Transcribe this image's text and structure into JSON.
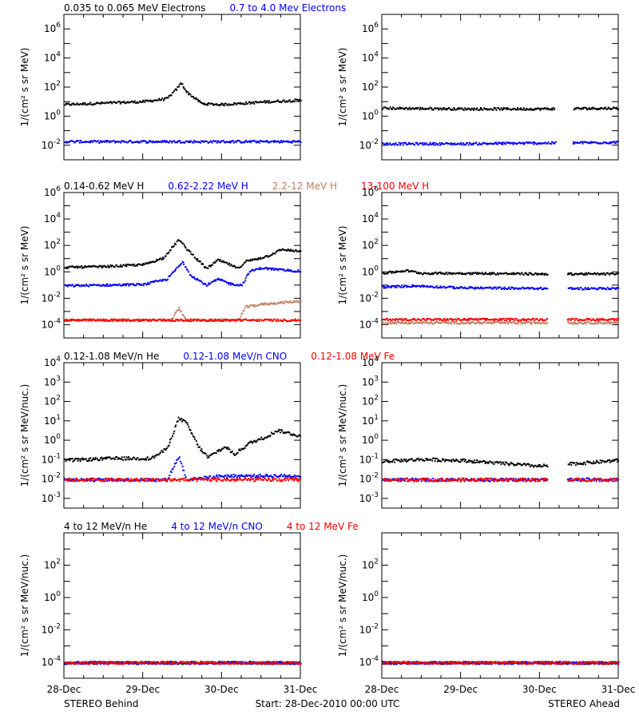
{
  "footer": {
    "left": "STEREO Behind",
    "center": "Start: 28-Dec-2010 00:00 UTC",
    "right": "STEREO Ahead"
  },
  "x_tick_labels": [
    "28-Dec",
    "29-Dec",
    "30-Dec",
    "31-Dec"
  ],
  "rows": [
    {
      "title_items": [
        {
          "text": "0.035 to 0.065 MeV Electrons",
          "color": "#000000"
        },
        {
          "text": "0.7 to 4.0 Mev Electrons",
          "color": "#0000ff"
        }
      ],
      "ylabel": "1/(cm² s sr MeV)",
      "y_ticks": [
        {
          "exp": -2,
          "label": "10",
          "sup": "-2"
        },
        {
          "exp": 0,
          "label": "10",
          "sup": "0"
        },
        {
          "exp": 2,
          "label": "10",
          "sup": "2"
        },
        {
          "exp": 4,
          "label": "10",
          "sup": "4"
        },
        {
          "exp": 6,
          "label": "10",
          "sup": "6"
        }
      ]
    },
    {
      "title_items": [
        {
          "text": "0.14-0.62 MeV H",
          "color": "#000000"
        },
        {
          "text": "0.62-2.22 MeV H",
          "color": "#0000ff"
        },
        {
          "text": "2.2-12 MeV H",
          "color": "#c08060"
        },
        {
          "text": "13-100 MeV H",
          "color": "#ff0000"
        }
      ],
      "ylabel": "1/(cm² s sr MeV)",
      "y_ticks": [
        {
          "exp": -4,
          "label": "10",
          "sup": "-4"
        },
        {
          "exp": -2,
          "label": "10",
          "sup": "-2"
        },
        {
          "exp": 0,
          "label": "10",
          "sup": "0"
        },
        {
          "exp": 2,
          "label": "10",
          "sup": "2"
        },
        {
          "exp": 4,
          "label": "10",
          "sup": "4"
        },
        {
          "exp": 6,
          "label": "10",
          "sup": "6"
        }
      ]
    },
    {
      "title_items": [
        {
          "text": "0.12-1.08 MeV/n He",
          "color": "#000000"
        },
        {
          "text": "0.12-1.08 MeV/n CNO",
          "color": "#0000ff"
        },
        {
          "text": "0.12-1.08 MeV Fe",
          "color": "#ff0000"
        }
      ],
      "ylabel": "1/(cm² s sr MeV/nuc.)",
      "y_ticks": [
        {
          "exp": -3,
          "label": "10",
          "sup": "-3"
        },
        {
          "exp": -2,
          "label": "10",
          "sup": "-2"
        },
        {
          "exp": -1,
          "label": "10",
          "sup": "-1"
        },
        {
          "exp": 0,
          "label": "10",
          "sup": "0"
        },
        {
          "exp": 1,
          "label": "10",
          "sup": "1"
        },
        {
          "exp": 2,
          "label": "10",
          "sup": "2"
        },
        {
          "exp": 3,
          "label": "10",
          "sup": "3"
        },
        {
          "exp": 4,
          "label": "10",
          "sup": "4"
        }
      ]
    },
    {
      "title_items": [
        {
          "text": "4 to 12 MeV/n He",
          "color": "#000000"
        },
        {
          "text": "4 to 12 MeV/n CNO",
          "color": "#0000ff"
        },
        {
          "text": "4 to 12 MeV Fe",
          "color": "#ff0000"
        }
      ],
      "ylabel": "1/(cm² s sr MeV/nuc.)",
      "y_ticks": [
        {
          "exp": -4,
          "label": "10",
          "sup": "-4"
        },
        {
          "exp": -2,
          "label": "10",
          "sup": "-2"
        },
        {
          "exp": 0,
          "label": "10",
          "sup": "0"
        },
        {
          "exp": 2,
          "label": "10",
          "sup": "2"
        }
      ]
    }
  ],
  "chart_data": [
    {
      "type": "scatter",
      "panel": "row1-behind",
      "y_scale": "log",
      "xlim": [
        28.0,
        31.0
      ],
      "ylim_exp": [
        -3,
        7
      ],
      "series": [
        {
          "name": "0.035 to 0.065 MeV Electrons",
          "color": "#000000",
          "x": [
            28.0,
            28.5,
            29.0,
            29.3,
            29.42,
            29.48,
            29.55,
            29.75,
            30.0,
            30.3,
            30.6,
            31.0
          ],
          "y_exp": [
            0.85,
            0.95,
            1.05,
            1.25,
            1.9,
            2.35,
            1.7,
            0.9,
            0.85,
            0.95,
            1.05,
            1.15
          ]
        },
        {
          "name": "0.7 to 4.0 Mev Electrons",
          "color": "#0000ff",
          "x": [
            28.0,
            29.0,
            30.0,
            31.0
          ],
          "y_exp": [
            -1.7,
            -1.7,
            -1.7,
            -1.7
          ]
        }
      ]
    },
    {
      "type": "scatter",
      "panel": "row1-ahead",
      "y_scale": "log",
      "xlim": [
        28.0,
        31.0
      ],
      "ylim_exp": [
        -3,
        7
      ],
      "data_gap": [
        30.2,
        30.42
      ],
      "series": [
        {
          "name": "0.035 to 0.065 MeV Electrons",
          "color": "#000000",
          "x": [
            28.0,
            29.0,
            30.0,
            31.0
          ],
          "y_exp": [
            0.6,
            0.55,
            0.55,
            0.6
          ]
        },
        {
          "name": "0.7 to 4.0 Mev Electrons",
          "color": "#0000ff",
          "x": [
            28.0,
            29.0,
            30.0,
            31.0
          ],
          "y_exp": [
            -1.85,
            -1.85,
            -1.8,
            -1.75
          ]
        }
      ]
    },
    {
      "type": "scatter",
      "panel": "row2-behind",
      "y_scale": "log",
      "xlim": [
        28.0,
        31.0
      ],
      "ylim_exp": [
        -5,
        6
      ],
      "series": [
        {
          "name": "0.14-0.62 MeV H",
          "color": "#000000",
          "x": [
            28.0,
            28.5,
            29.0,
            29.25,
            29.38,
            29.45,
            29.55,
            29.65,
            29.8,
            29.95,
            30.1,
            30.2,
            30.3,
            30.45,
            30.6,
            30.75,
            31.0
          ],
          "y_exp": [
            0.4,
            0.45,
            0.6,
            1.1,
            2.0,
            2.5,
            1.8,
            1.2,
            0.3,
            0.95,
            0.6,
            0.3,
            0.85,
            1.05,
            1.3,
            1.75,
            1.6
          ]
        },
        {
          "name": "0.62-2.22 MeV H",
          "color": "#0000ff",
          "x": [
            28.0,
            28.5,
            29.0,
            29.3,
            29.42,
            29.5,
            29.6,
            29.8,
            29.95,
            30.1,
            30.25,
            30.35,
            30.5,
            30.75,
            31.0
          ],
          "y_exp": [
            -1.0,
            -0.95,
            -0.9,
            -0.5,
            0.3,
            0.8,
            -0.2,
            -0.95,
            -0.5,
            -0.85,
            -0.95,
            0.1,
            0.35,
            0.2,
            0.1
          ]
        },
        {
          "name": "2.2-12 MeV H",
          "color": "#c08060",
          "x": [
            28.0,
            29.35,
            29.45,
            29.55,
            30.2,
            30.3,
            30.5,
            31.0
          ],
          "y_exp": [
            -3.6,
            -3.6,
            -2.7,
            -3.6,
            -3.6,
            -2.6,
            -2.4,
            -2.15
          ]
        },
        {
          "name": "13-100 MeV H",
          "color": "#ff0000",
          "x": [
            28.0,
            29.0,
            30.0,
            31.0
          ],
          "y_exp": [
            -3.6,
            -3.6,
            -3.6,
            -3.6
          ]
        }
      ]
    },
    {
      "type": "scatter",
      "panel": "row2-ahead",
      "y_scale": "log",
      "xlim": [
        28.0,
        31.0
      ],
      "ylim_exp": [
        -5,
        6
      ],
      "data_gap": [
        30.1,
        30.35
      ],
      "series": [
        {
          "name": "0.14-0.62 MeV H",
          "color": "#000000",
          "x": [
            28.0,
            28.3,
            28.5,
            29.0,
            30.0,
            31.0
          ],
          "y_exp": [
            -0.05,
            0.15,
            -0.05,
            -0.05,
            -0.1,
            -0.1
          ]
        },
        {
          "name": "0.62-2.22 MeV H",
          "color": "#0000ff",
          "x": [
            28.0,
            28.4,
            29.0,
            30.0,
            31.0
          ],
          "y_exp": [
            -1.1,
            -1.0,
            -1.15,
            -1.2,
            -1.2
          ]
        },
        {
          "name": "2.2-12 MeV H",
          "color": "#c08060",
          "x": [
            28.0,
            31.0
          ],
          "y_exp": [
            -3.8,
            -3.8
          ]
        },
        {
          "name": "13-100 MeV H",
          "color": "#ff0000",
          "x": [
            28.0,
            31.0
          ],
          "y_exp": [
            -3.55,
            -3.55
          ]
        }
      ]
    },
    {
      "type": "scatter",
      "panel": "row3-behind",
      "y_scale": "log",
      "xlim": [
        28.0,
        31.0
      ],
      "ylim_exp": [
        -3.5,
        4
      ],
      "series": [
        {
          "name": "0.12-1.08 MeV/n He",
          "color": "#000000",
          "x": [
            28.0,
            28.6,
            29.1,
            29.3,
            29.45,
            29.55,
            29.7,
            29.82,
            29.95,
            30.05,
            30.15,
            30.35,
            30.55,
            30.7,
            31.0
          ],
          "y_exp": [
            -1.0,
            -0.9,
            -0.9,
            -0.4,
            1.2,
            0.9,
            -0.3,
            -0.85,
            -0.5,
            -0.3,
            -0.7,
            -0.1,
            0.2,
            0.55,
            0.25
          ]
        },
        {
          "name": "0.12-1.08 MeV/n CNO",
          "color": "#0000ff",
          "x": [
            28.0,
            29.3,
            29.45,
            29.55,
            30.0,
            31.0
          ],
          "y_exp": [
            -2.0,
            -2.0,
            -0.8,
            -2.0,
            -1.8,
            -1.8
          ]
        },
        {
          "name": "0.12-1.08 MeV Fe",
          "color": "#ff0000",
          "x": [
            28.0,
            29.0,
            30.0,
            31.0
          ],
          "y_exp": [
            -2.0,
            -2.0,
            -2.0,
            -2.0
          ]
        }
      ]
    },
    {
      "type": "scatter",
      "panel": "row3-ahead",
      "y_scale": "log",
      "xlim": [
        28.0,
        31.0
      ],
      "ylim_exp": [
        -3.5,
        4
      ],
      "data_gap": [
        30.1,
        30.35
      ],
      "series": [
        {
          "name": "0.12-1.08 MeV/n He",
          "color": "#000000",
          "x": [
            28.0,
            28.5,
            29.0,
            30.0,
            31.0
          ],
          "y_exp": [
            -1.05,
            -0.95,
            -1.0,
            -1.3,
            -1.0
          ]
        },
        {
          "name": "0.12-1.08 MeV/n CNO",
          "color": "#0000ff",
          "x": [
            28.0,
            31.0
          ],
          "y_exp": [
            -2.0,
            -2.0
          ]
        },
        {
          "name": "0.12-1.08 MeV Fe",
          "color": "#ff0000",
          "x": [
            28.0,
            31.0
          ],
          "y_exp": [
            -2.0,
            -2.0
          ]
        }
      ]
    },
    {
      "type": "scatter",
      "panel": "row4-behind",
      "y_scale": "log",
      "xlim": [
        28.0,
        31.0
      ],
      "ylim_exp": [
        -5,
        4
      ],
      "series": [
        {
          "name": "4 to 12 MeV/n He",
          "color": "#000000",
          "x": [
            28.0,
            31.0
          ],
          "y_exp": [
            -4.0,
            -4.0
          ]
        },
        {
          "name": "4 to 12 MeV/n CNO",
          "color": "#0000ff",
          "x": [
            28.0,
            31.0
          ],
          "y_exp": [
            -4.0,
            -4.0
          ]
        },
        {
          "name": "4 to 12 MeV Fe",
          "color": "#ff0000",
          "x": [
            28.0,
            31.0
          ],
          "y_exp": [
            -4.0,
            -4.0
          ]
        }
      ]
    },
    {
      "type": "scatter",
      "panel": "row4-ahead",
      "y_scale": "log",
      "xlim": [
        28.0,
        31.0
      ],
      "ylim_exp": [
        -5,
        4
      ],
      "series": [
        {
          "name": "4 to 12 MeV/n He",
          "color": "#000000",
          "x": [
            28.0,
            31.0
          ],
          "y_exp": [
            -4.0,
            -4.0
          ]
        },
        {
          "name": "4 to 12 MeV/n CNO",
          "color": "#0000ff",
          "x": [
            28.0,
            31.0
          ],
          "y_exp": [
            -4.0,
            -4.0
          ]
        },
        {
          "name": "4 to 12 MeV Fe",
          "color": "#ff0000",
          "x": [
            28.0,
            31.0
          ],
          "y_exp": [
            -4.0,
            -4.0
          ]
        }
      ]
    }
  ]
}
